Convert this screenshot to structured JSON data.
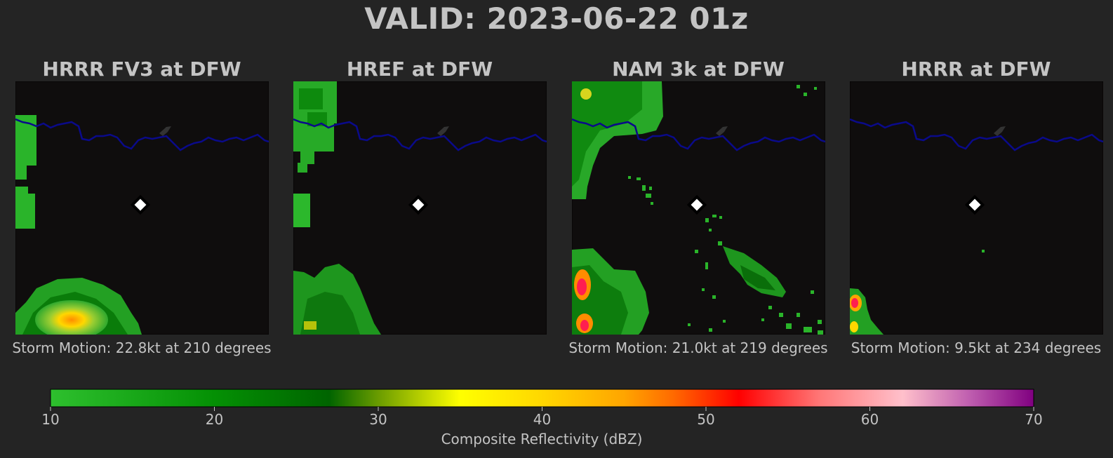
{
  "title": "VALID: 2023-06-22 01z",
  "colors": {
    "background": "#242424",
    "map_background": "#0f0d0d",
    "river": "#0a0a8a",
    "text": "#c4c4c4"
  },
  "panels": [
    {
      "title": "HRRR FV3 at DFW",
      "caption": "Storm Motion: 22.8kt at 210 degrees"
    },
    {
      "title": "HREF at DFW",
      "caption": ""
    },
    {
      "title": "NAM 3k at DFW",
      "caption": "Storm Motion: 21.0kt at 219 degrees"
    },
    {
      "title": "HRRR at DFW",
      "caption": "Storm Motion: 9.5kt at 234 degrees"
    }
  ],
  "chart_data": {
    "type": "heatmap",
    "colorbar": {
      "label": "Composite Reflectivity (dBZ)",
      "range": [
        10,
        70
      ],
      "ticks": [
        10,
        20,
        30,
        40,
        50,
        60,
        70
      ],
      "stops": [
        {
          "value": 10,
          "color": "#2ec02e"
        },
        {
          "value": 20,
          "color": "#049004"
        },
        {
          "value": 27,
          "color": "#006400"
        },
        {
          "value": 30,
          "color": "#6a9c00"
        },
        {
          "value": 35,
          "color": "#ffff00"
        },
        {
          "value": 40,
          "color": "#ffd700"
        },
        {
          "value": 45,
          "color": "#ffa500"
        },
        {
          "value": 48,
          "color": "#ff6a00"
        },
        {
          "value": 52,
          "color": "#ff0000"
        },
        {
          "value": 57,
          "color": "#ff7878"
        },
        {
          "value": 62,
          "color": "#ffc0cb"
        },
        {
          "value": 66,
          "color": "#c060b0"
        },
        {
          "value": 70,
          "color": "#800080"
        }
      ]
    }
  }
}
